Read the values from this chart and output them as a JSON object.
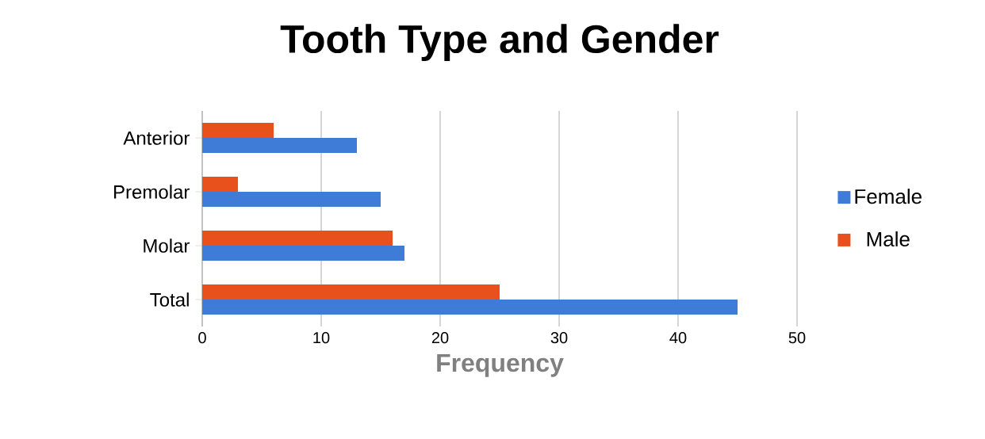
{
  "chart_data": {
    "type": "bar",
    "orientation": "horizontal",
    "title": "Tooth Type and Gender",
    "xlabel": "Frequency",
    "categories": [
      "Anterior",
      "Premolar",
      "Molar",
      "Total"
    ],
    "series": [
      {
        "name": "Female",
        "color": "#3f7cd8",
        "values": [
          13,
          15,
          17,
          45
        ]
      },
      {
        "name": "Male",
        "color": "#e8501c",
        "values": [
          6,
          3,
          16,
          25
        ]
      }
    ],
    "xlim": [
      0,
      50
    ],
    "xticks": [
      0,
      10,
      20,
      30,
      40,
      50
    ],
    "grid": "x",
    "legend": "right"
  }
}
